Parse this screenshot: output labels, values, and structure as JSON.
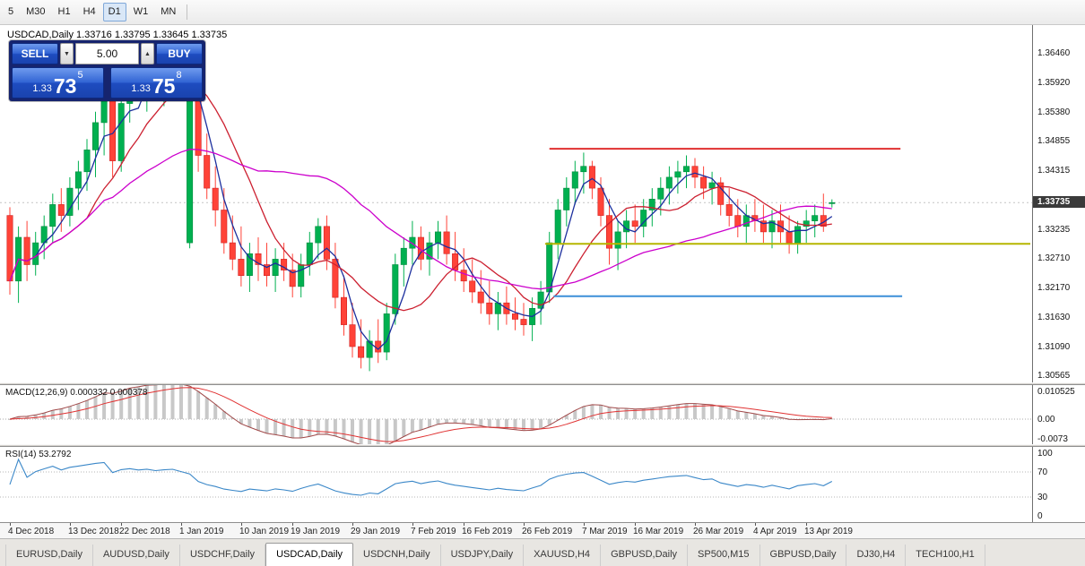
{
  "toolbar": {
    "timeframes": [
      {
        "label": "5",
        "active": false
      },
      {
        "label": "M30",
        "active": false
      },
      {
        "label": "H1",
        "active": false
      },
      {
        "label": "H4",
        "active": false
      },
      {
        "label": "D1",
        "active": true
      },
      {
        "label": "W1",
        "active": false
      },
      {
        "label": "MN",
        "active": false
      }
    ]
  },
  "chart_title": "USDCAD,Daily 1.33716 1.33795 1.33645 1.33735",
  "trade_panel": {
    "sell_label": "SELL",
    "buy_label": "BUY",
    "volume": "5.00",
    "sell_price_small": "1.33",
    "sell_price_big": "73",
    "sell_price_sup": "5",
    "buy_price_small": "1.33",
    "buy_price_big": "75",
    "buy_price_sup": "8",
    "decrement_icon": "▼",
    "increment_icon": "▲"
  },
  "price_axis": {
    "labels": [
      "1.36460",
      "1.35920",
      "1.35380",
      "1.34855",
      "1.34315",
      "1.33775",
      "1.33235",
      "1.32710",
      "1.32170",
      "1.31630",
      "1.31090",
      "1.30565"
    ],
    "current_price": "1.33735"
  },
  "indicators": {
    "macd": {
      "label": "MACD(12,26,9) 0.000332 0.000378",
      "axis": [
        "0.010525",
        "0.00",
        "-0.0073"
      ],
      "fast": 12,
      "slow": 26,
      "signal": 9
    },
    "rsi": {
      "label": "RSI(14) 53.2792",
      "axis": [
        "100",
        "70",
        "30",
        "0"
      ],
      "period": 14,
      "levels": [
        70,
        30
      ]
    }
  },
  "date_axis": [
    {
      "label": "4 Dec 2018",
      "index": 0
    },
    {
      "label": "13 Dec 2018",
      "index": 7
    },
    {
      "label": "22 Dec 2018",
      "index": 13
    },
    {
      "label": "1 Jan 2019",
      "index": 20
    },
    {
      "label": "10 Jan 2019",
      "index": 27
    },
    {
      "label": "19 Jan 2019",
      "index": 33
    },
    {
      "label": "29 Jan 2019",
      "index": 40
    },
    {
      "label": "7 Feb 2019",
      "index": 47
    },
    {
      "label": "16 Feb 2019",
      "index": 53
    },
    {
      "label": "26 Feb 2019",
      "index": 60
    },
    {
      "label": "7 Mar 2019",
      "index": 67
    },
    {
      "label": "16 Mar 2019",
      "index": 73
    },
    {
      "label": "26 Mar 2019",
      "index": 80
    },
    {
      "label": "4 Apr 2019",
      "index": 87
    },
    {
      "label": "13 Apr 2019",
      "index": 93
    }
  ],
  "tabs": [
    {
      "label": "EURUSD,Daily",
      "active": false
    },
    {
      "label": "AUDUSD,Daily",
      "active": false
    },
    {
      "label": "USDCHF,Daily",
      "active": false
    },
    {
      "label": "USDCAD,Daily",
      "active": true
    },
    {
      "label": "USDCNH,Daily",
      "active": false
    },
    {
      "label": "USDJPY,Daily",
      "active": false
    },
    {
      "label": "XAUUSD,H4",
      "active": false
    },
    {
      "label": "GBPUSD,Daily",
      "active": false
    },
    {
      "label": "SP500,M15",
      "active": false
    },
    {
      "label": "GBPUSD,Daily",
      "active": false
    },
    {
      "label": "DJ30,H4",
      "active": false
    },
    {
      "label": "TECH100,H1",
      "active": false
    }
  ],
  "chart_data": {
    "type": "candlestick",
    "symbol": "USDCAD",
    "period": "Daily",
    "ohlc": [
      [
        1.335,
        1.3365,
        1.3205,
        1.323
      ],
      [
        1.323,
        1.333,
        1.319,
        1.331
      ],
      [
        1.331,
        1.334,
        1.323,
        1.326
      ],
      [
        1.326,
        1.332,
        1.324,
        1.33
      ],
      [
        1.33,
        1.335,
        1.327,
        1.333
      ],
      [
        1.333,
        1.339,
        1.33,
        1.337
      ],
      [
        1.337,
        1.34,
        1.332,
        1.335
      ],
      [
        1.335,
        1.342,
        1.333,
        1.34
      ],
      [
        1.34,
        1.345,
        1.336,
        1.343
      ],
      [
        1.343,
        1.349,
        1.3395,
        1.347
      ],
      [
        1.347,
        1.354,
        1.342,
        1.352
      ],
      [
        1.352,
        1.3585,
        1.346,
        1.356
      ],
      [
        1.356,
        1.359,
        1.342,
        1.345
      ],
      [
        1.345,
        1.358,
        1.343,
        1.3555
      ],
      [
        1.3555,
        1.362,
        1.352,
        1.36
      ],
      [
        1.36,
        1.364,
        1.356,
        1.358
      ],
      [
        1.358,
        1.363,
        1.354,
        1.361
      ],
      [
        1.361,
        1.365,
        1.357,
        1.359
      ],
      [
        1.359,
        1.364,
        1.355,
        1.362
      ],
      [
        1.362,
        1.366,
        1.358,
        1.364
      ],
      [
        1.364,
        1.3655,
        1.359,
        1.361
      ],
      [
        1.33,
        1.3664,
        1.329,
        1.358
      ],
      [
        1.358,
        1.361,
        1.343,
        1.346
      ],
      [
        1.346,
        1.35,
        1.338,
        1.34
      ],
      [
        1.34,
        1.344,
        1.333,
        1.336
      ],
      [
        1.336,
        1.34,
        1.328,
        1.33
      ],
      [
        1.33,
        1.335,
        1.325,
        1.327
      ],
      [
        1.327,
        1.333,
        1.322,
        1.324
      ],
      [
        1.324,
        1.33,
        1.321,
        1.328
      ],
      [
        1.328,
        1.331,
        1.323,
        1.326
      ],
      [
        1.326,
        1.33,
        1.322,
        1.324
      ],
      [
        1.324,
        1.329,
        1.321,
        1.327
      ],
      [
        1.327,
        1.33,
        1.323,
        1.325
      ],
      [
        1.325,
        1.328,
        1.32,
        1.322
      ],
      [
        1.322,
        1.328,
        1.32,
        1.326
      ],
      [
        1.326,
        1.332,
        1.324,
        1.33
      ],
      [
        1.33,
        1.3345,
        1.327,
        1.333
      ],
      [
        1.333,
        1.335,
        1.325,
        1.327
      ],
      [
        1.327,
        1.33,
        1.318,
        1.32
      ],
      [
        1.32,
        1.324,
        1.313,
        1.315
      ],
      [
        1.315,
        1.319,
        1.309,
        1.311
      ],
      [
        1.311,
        1.316,
        1.307,
        1.309
      ],
      [
        1.309,
        1.314,
        1.3065,
        1.312
      ],
      [
        1.312,
        1.316,
        1.308,
        1.31
      ],
      [
        1.31,
        1.319,
        1.3085,
        1.317
      ],
      [
        1.317,
        1.328,
        1.315,
        1.326
      ],
      [
        1.326,
        1.331,
        1.322,
        1.329
      ],
      [
        1.329,
        1.334,
        1.326,
        1.331
      ],
      [
        1.331,
        1.333,
        1.325,
        1.327
      ],
      [
        1.327,
        1.332,
        1.324,
        1.33
      ],
      [
        1.33,
        1.334,
        1.327,
        1.332
      ],
      [
        1.332,
        1.335,
        1.326,
        1.328
      ],
      [
        1.328,
        1.332,
        1.323,
        1.325
      ],
      [
        1.325,
        1.329,
        1.321,
        1.323
      ],
      [
        1.323,
        1.327,
        1.319,
        1.321
      ],
      [
        1.321,
        1.325,
        1.317,
        1.319
      ],
      [
        1.319,
        1.323,
        1.315,
        1.317
      ],
      [
        1.317,
        1.321,
        1.314,
        1.319
      ],
      [
        1.319,
        1.322,
        1.315,
        1.317
      ],
      [
        1.317,
        1.32,
        1.314,
        1.316
      ],
      [
        1.316,
        1.319,
        1.313,
        1.315
      ],
      [
        1.315,
        1.32,
        1.312,
        1.318
      ],
      [
        1.318,
        1.323,
        1.315,
        1.321
      ],
      [
        1.321,
        1.332,
        1.319,
        1.33
      ],
      [
        1.33,
        1.338,
        1.327,
        1.336
      ],
      [
        1.336,
        1.342,
        1.333,
        1.34
      ],
      [
        1.34,
        1.345,
        1.337,
        1.343
      ],
      [
        1.343,
        1.3465,
        1.339,
        1.344
      ],
      [
        1.344,
        1.345,
        1.338,
        1.34
      ],
      [
        1.34,
        1.342,
        1.333,
        1.335
      ],
      [
        1.335,
        1.338,
        1.326,
        1.329
      ],
      [
        1.329,
        1.334,
        1.325,
        1.332
      ],
      [
        1.332,
        1.336,
        1.329,
        1.334
      ],
      [
        1.334,
        1.337,
        1.33,
        1.333
      ],
      [
        1.333,
        1.338,
        1.331,
        1.336
      ],
      [
        1.336,
        1.34,
        1.333,
        1.338
      ],
      [
        1.338,
        1.342,
        1.335,
        1.34
      ],
      [
        1.34,
        1.344,
        1.337,
        1.342
      ],
      [
        1.342,
        1.345,
        1.339,
        1.343
      ],
      [
        1.343,
        1.346,
        1.34,
        1.344
      ],
      [
        1.344,
        1.3455,
        1.34,
        1.342
      ],
      [
        1.342,
        1.344,
        1.338,
        1.34
      ],
      [
        1.34,
        1.343,
        1.337,
        1.341
      ],
      [
        1.341,
        1.342,
        1.335,
        1.337
      ],
      [
        1.337,
        1.34,
        1.333,
        1.335
      ],
      [
        1.335,
        1.338,
        1.331,
        1.333
      ],
      [
        1.333,
        1.337,
        1.33,
        1.335
      ],
      [
        1.335,
        1.338,
        1.332,
        1.334
      ],
      [
        1.334,
        1.337,
        1.33,
        1.332
      ],
      [
        1.332,
        1.336,
        1.329,
        1.334
      ],
      [
        1.334,
        1.337,
        1.33,
        1.332
      ],
      [
        1.332,
        1.335,
        1.328,
        1.33
      ],
      [
        1.33,
        1.334,
        1.328,
        1.333
      ],
      [
        1.333,
        1.336,
        1.33,
        1.334
      ],
      [
        1.334,
        1.337,
        1.331,
        1.335
      ],
      [
        1.335,
        1.339,
        1.332,
        1.333
      ],
      [
        1.33716,
        1.33795,
        1.33645,
        1.33735
      ]
    ],
    "moving_averages": [
      {
        "name": "fast-ma",
        "period": 4,
        "color": "#1c2f9e"
      },
      {
        "name": "mid-ma",
        "period": 10,
        "color": "#cc2030"
      },
      {
        "name": "slow-ma",
        "period": 30,
        "color": "#cc00cc"
      }
    ],
    "levels": [
      {
        "name": "resistance-line",
        "price": 1.3472,
        "from": 63,
        "to": 104,
        "color": "#e03030"
      },
      {
        "name": "mid-support-line",
        "price": 1.3298,
        "from": 62.5,
        "to": 120,
        "color": "#b5b500"
      },
      {
        "name": "lower-support-line",
        "price": 1.3202,
        "from": 63.5,
        "to": 104.2,
        "color": "#3c8fd8"
      }
    ],
    "colors": {
      "up": "#00b050",
      "up_border": "#008a3c",
      "down": "#ff4338",
      "down_border": "#d02020",
      "macd_histogram": "#c8c8c8",
      "macd_line": "#a04848",
      "macd_signal": "#e03232",
      "rsi_line": "#3a87c8"
    }
  }
}
